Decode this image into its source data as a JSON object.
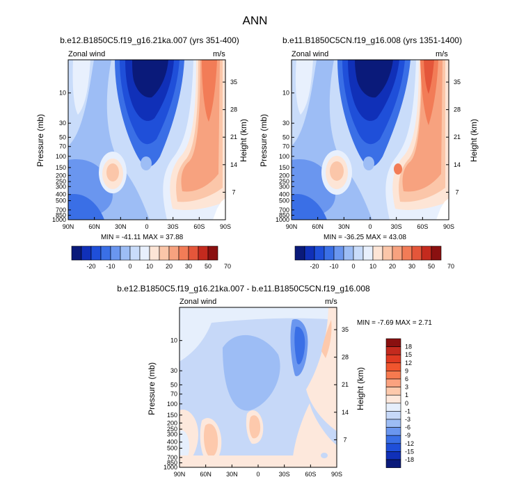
{
  "page_title": "ANN",
  "chart_data": [
    {
      "type": "heatmap",
      "title": "b.e12.B1850C5.f19_g16.21ka.007 (yrs 351-400)",
      "left_label": "Zonal wind",
      "right_label": "m/s",
      "ylabel": "Pressure (mb)",
      "y2label": "Height (km)",
      "x_ticks": [
        "90N",
        "60N",
        "30N",
        "0",
        "30S",
        "60S",
        "90S"
      ],
      "y_ticks": [
        "10",
        "30",
        "50",
        "70",
        "100",
        "150",
        "200",
        "250",
        "300",
        "400",
        "500",
        "700",
        "850",
        "1000"
      ],
      "y2_ticks": [
        "35",
        "28",
        "21",
        "14",
        "7"
      ],
      "stats_text": "MIN = -41.11  MAX = 37.88",
      "colorbar_labels": [
        "-20",
        "-10",
        "0",
        "10",
        "20",
        "30",
        "50",
        "70"
      ],
      "colorbar_colors": [
        "#0a1a7a",
        "#1030b8",
        "#1f4fd9",
        "#3a6fe6",
        "#6a96ef",
        "#9dbdf5",
        "#c9dcfa",
        "#e8f0fd",
        "#fde5d6",
        "#fbc6a9",
        "#f7a27f",
        "#f27c57",
        "#e4563a",
        "#c42a1e",
        "#8a1010"
      ]
    },
    {
      "type": "heatmap",
      "title": "b.e11.B1850C5CN.f19_g16.008 (yrs 1351-1400)",
      "left_label": "Zonal wind",
      "right_label": "m/s",
      "ylabel": "Pressure (mb)",
      "y2label": "Height (km)",
      "x_ticks": [
        "90N",
        "60N",
        "30N",
        "0",
        "30S",
        "60S",
        "90S"
      ],
      "y_ticks": [
        "10",
        "30",
        "50",
        "70",
        "100",
        "150",
        "200",
        "250",
        "300",
        "400",
        "500",
        "700",
        "850",
        "1000"
      ],
      "y2_ticks": [
        "35",
        "28",
        "21",
        "14",
        "7"
      ],
      "stats_text": "MIN = -36.25  MAX =  43.08",
      "colorbar_labels": [
        "-20",
        "-10",
        "0",
        "10",
        "20",
        "30",
        "50",
        "70"
      ],
      "colorbar_colors": [
        "#0a1a7a",
        "#1030b8",
        "#1f4fd9",
        "#3a6fe6",
        "#6a96ef",
        "#9dbdf5",
        "#c9dcfa",
        "#e8f0fd",
        "#fde5d6",
        "#fbc6a9",
        "#f7a27f",
        "#f27c57",
        "#e4563a",
        "#c42a1e",
        "#8a1010"
      ]
    },
    {
      "type": "heatmap",
      "title": "b.e12.B1850C5.f19_g16.21ka.007 - b.e11.B1850C5CN.f19_g16.008",
      "left_label": "Zonal wind",
      "right_label": "m/s",
      "ylabel": "Pressure (mb)",
      "y2label": "Height (km)",
      "x_ticks": [
        "90N",
        "60N",
        "30N",
        "0",
        "30S",
        "60S",
        "90S"
      ],
      "y_ticks": [
        "10",
        "30",
        "50",
        "70",
        "100",
        "150",
        "200",
        "250",
        "300",
        "400",
        "500",
        "700",
        "850",
        "1000"
      ],
      "y2_ticks": [
        "35",
        "28",
        "21",
        "14",
        "7"
      ],
      "stats_text": "MIN =  -7.69  MAX =   2.71",
      "colorbar_labels": [
        "18",
        "15",
        "12",
        "9",
        "6",
        "3",
        "1",
        "0",
        "-1",
        "-3",
        "-6",
        "-9",
        "-12",
        "-15",
        "-18"
      ],
      "colorbar_colors": [
        "#8a1010",
        "#c42a1e",
        "#e03a22",
        "#f0552e",
        "#f77a4f",
        "#fba27f",
        "#fdc9ac",
        "#fde8dc",
        "#e6effc",
        "#c6d8f8",
        "#9dbdf5",
        "#6a96ef",
        "#3a6fe6",
        "#1f4fd9",
        "#1030b8",
        "#0a1a7a"
      ]
    }
  ]
}
